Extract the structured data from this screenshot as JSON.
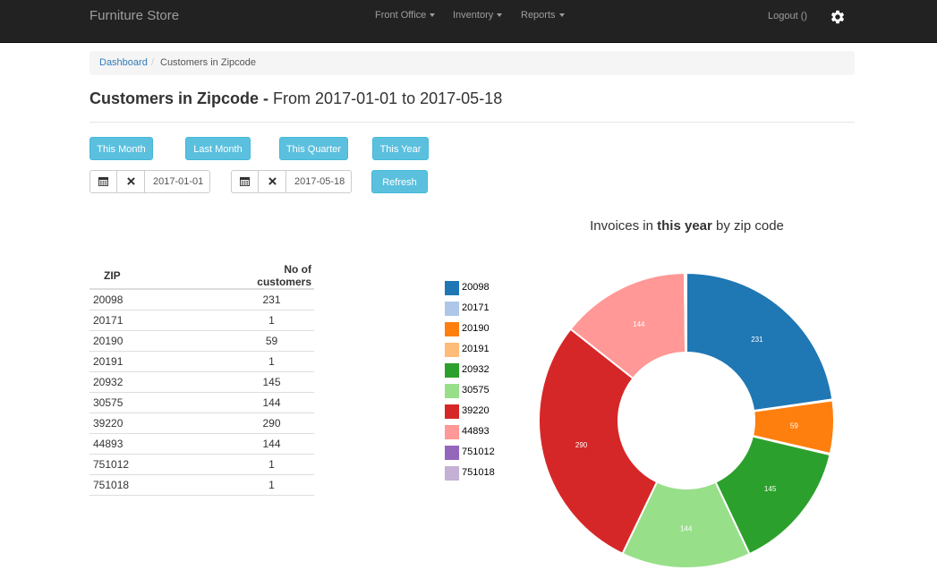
{
  "navbar": {
    "brand": "Furniture Store",
    "menus": [
      {
        "label": "Front Office"
      },
      {
        "label": "Inventory"
      },
      {
        "label": "Reports"
      }
    ],
    "logout": "Logout ()",
    "settings_icon": "gear-icon"
  },
  "breadcrumb": {
    "home": "Dashboard",
    "separator": "/",
    "current": "Customers in Zipcode"
  },
  "page": {
    "title": "Customers in Zipcode -",
    "range": "From 2017-01-01 to 2017-05-18"
  },
  "period_buttons": {
    "this_month": "This Month",
    "last_month": "Last Month",
    "this_quarter": "This Quarter",
    "this_year": "This Year"
  },
  "date_filter": {
    "start": "2017-01-01",
    "end": "2017-05-18",
    "refresh": "Refresh",
    "calendar_icon": "calendar-icon",
    "clear_icon": "clear-icon"
  },
  "table": {
    "headers": [
      "ZIP",
      "No of customers"
    ],
    "rows": [
      [
        "20098",
        "231"
      ],
      [
        "20171",
        "1"
      ],
      [
        "20190",
        "59"
      ],
      [
        "20191",
        "1"
      ],
      [
        "20932",
        "145"
      ],
      [
        "30575",
        "144"
      ],
      [
        "39220",
        "290"
      ],
      [
        "44893",
        "144"
      ],
      [
        "751012",
        "1"
      ],
      [
        "751018",
        "1"
      ]
    ]
  },
  "chart_data": {
    "type": "pie",
    "donut": true,
    "title_prefix": "Invoices in ",
    "title_bold": "this year",
    "title_suffix": " by zip code",
    "legend_position": "left",
    "categories": [
      "20098",
      "20171",
      "20190",
      "20191",
      "20932",
      "30575",
      "39220",
      "44893",
      "751012",
      "751018"
    ],
    "values": [
      231,
      1,
      59,
      1,
      145,
      144,
      290,
      144,
      1,
      1
    ],
    "colors": [
      "#1f77b4",
      "#aec7e8",
      "#ff7f0e",
      "#ffbb78",
      "#2ca02c",
      "#98df8a",
      "#d62728",
      "#ff9896",
      "#9467bd",
      "#c5b0d5"
    ],
    "labels_shown_min": 10
  }
}
